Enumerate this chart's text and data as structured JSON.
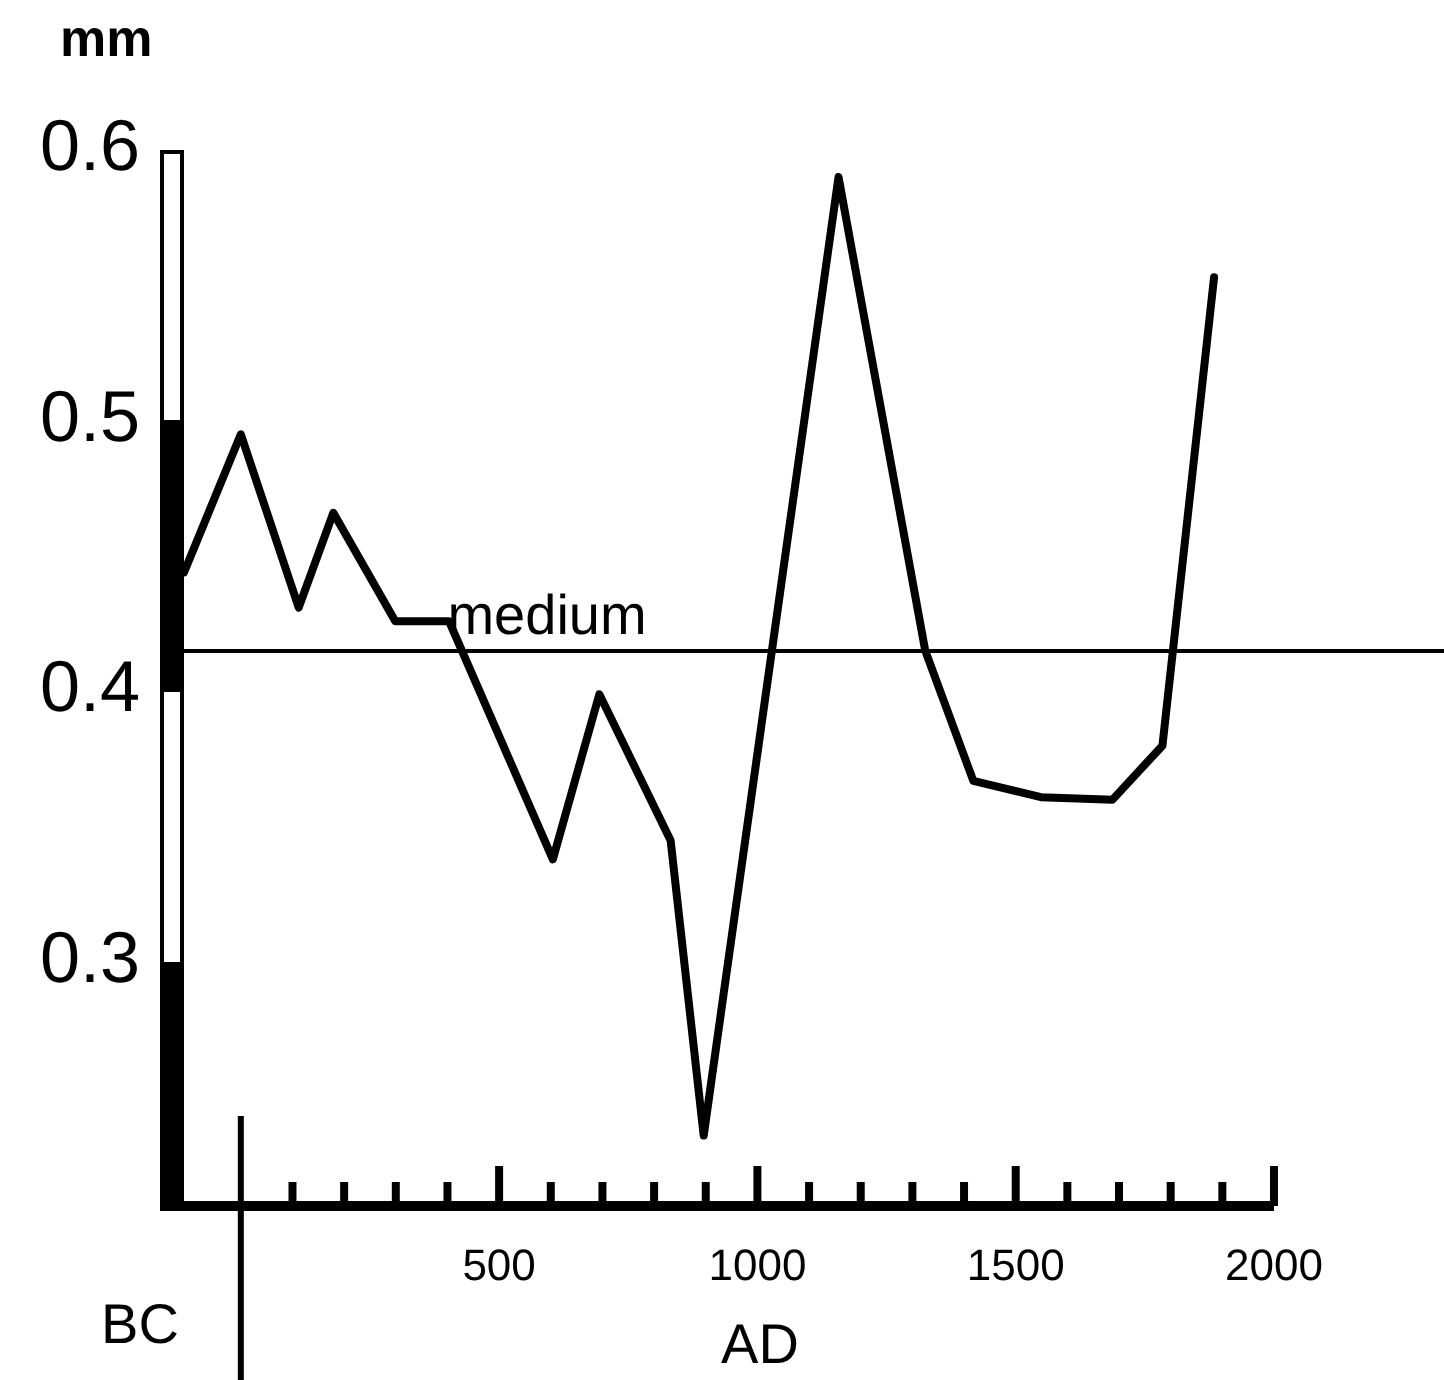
{
  "chart_data": {
    "type": "line",
    "ylabel": "mm",
    "xlabel": "AD",
    "annotations": [
      "BC"
    ],
    "x": [
      -110,
      0,
      112,
      179,
      299,
      403,
      604,
      694,
      832,
      896,
      1157,
      1325,
      1418,
      1549,
      1687,
      1784,
      1884
    ],
    "values": [
      0.444,
      0.495,
      0.431,
      0.466,
      0.426,
      0.426,
      0.338,
      0.399,
      0.345,
      0.236,
      0.59,
      0.415,
      0.367,
      0.361,
      0.36,
      0.38,
      0.553
    ],
    "color": "#000000",
    "marker": "none",
    "line_style": "solid",
    "grid": false,
    "legend": false,
    "xlim": [
      -110,
      2000
    ],
    "xticks": [
      {
        "value": 100,
        "label": null
      },
      {
        "value": 200,
        "label": null
      },
      {
        "value": 300,
        "label": null
      },
      {
        "value": 400,
        "label": null
      },
      500,
      {
        "value": 600,
        "label": null
      },
      {
        "value": 700,
        "label": null
      },
      {
        "value": 800,
        "label": null
      },
      {
        "value": 900,
        "label": null
      },
      1000,
      {
        "value": 1100,
        "label": null
      },
      {
        "value": 1200,
        "label": null
      },
      {
        "value": 1300,
        "label": null
      },
      {
        "value": 1400,
        "label": null
      },
      1500,
      {
        "value": 1600,
        "label": null
      },
      {
        "value": 1700,
        "label": null
      },
      {
        "value": 1800,
        "label": null
      },
      {
        "value": 1900,
        "label": null
      },
      2000
    ],
    "ylim": [
      0.21,
      0.6
    ],
    "yticks": [
      0.3,
      0.4,
      0.5,
      0.6
    ],
    "ref_lines": [
      {
        "axis": "y",
        "value": 0.415,
        "label": "medium"
      },
      {
        "axis": "x",
        "value": 0
      }
    ]
  }
}
